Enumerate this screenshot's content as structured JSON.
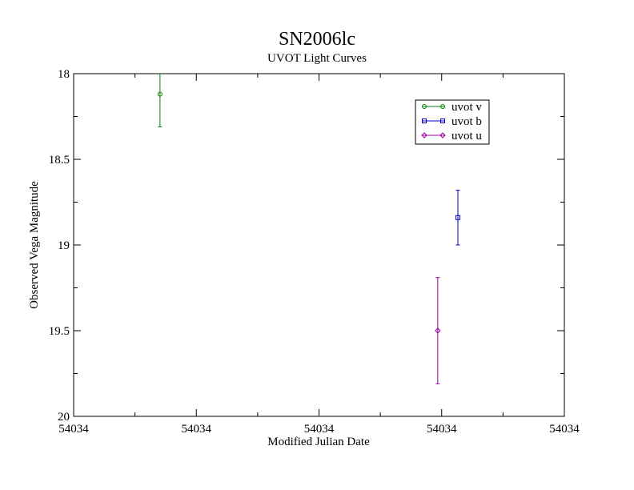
{
  "chart_data": {
    "type": "scatter",
    "title": "SN2006lc",
    "subtitle": "UVOT Light Curves",
    "xlabel": "Modified Julian Date",
    "ylabel": "Observed Vega Magnitude",
    "x_tick_labels": [
      "54034",
      "54034",
      "54034",
      "54034",
      "54034"
    ],
    "y_tick_labels": [
      "18",
      "18.5",
      "19",
      "19.5",
      "20"
    ],
    "y_ticks": [
      18,
      18.5,
      19,
      19.5,
      20
    ],
    "ylim": [
      18,
      20
    ],
    "y_inverted": true,
    "x_tick_fraction_positions": [
      0,
      0.25,
      0.5,
      0.75,
      1.0
    ],
    "grid": false,
    "legend_position": "top-right",
    "series": [
      {
        "name": "uvot v",
        "color": "#008000",
        "marker": "circle",
        "points": [
          {
            "x_frac": 0.176,
            "y": 18.12,
            "err": 0.19
          }
        ]
      },
      {
        "name": "uvot b",
        "color": "#0000cc",
        "marker": "square",
        "points": [
          {
            "x_frac": 0.783,
            "y": 18.84,
            "err": 0.16
          }
        ]
      },
      {
        "name": "uvot u",
        "color": "#990099",
        "marker": "diamond",
        "points": [
          {
            "x_frac": 0.742,
            "y": 19.5,
            "err": 0.31
          }
        ]
      }
    ]
  }
}
